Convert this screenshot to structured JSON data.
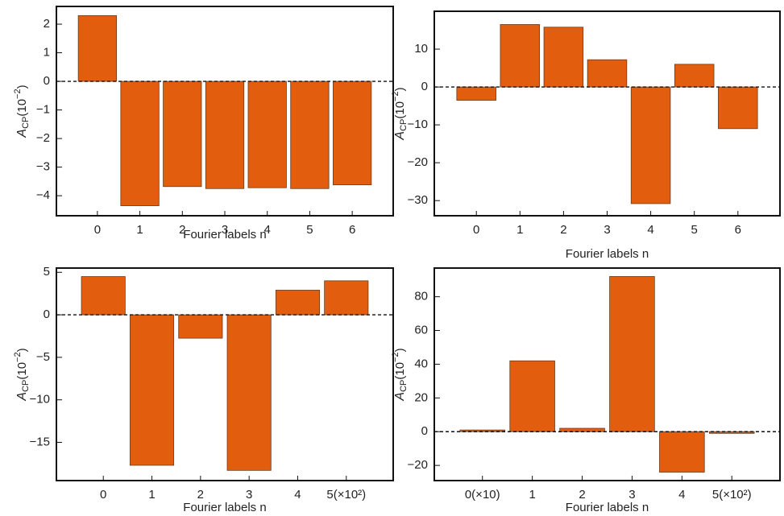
{
  "chart_data": [
    {
      "type": "bar",
      "xlabel": "Fourier labels n",
      "ylabel": {
        "base": "A",
        "sub": "CP",
        "open": "(10",
        "sup": "−2",
        "close": ")"
      },
      "categories": [
        "0",
        "1",
        "2",
        "3",
        "4",
        "5",
        "6"
      ],
      "values": [
        2.3,
        -4.35,
        -3.68,
        -3.75,
        -3.72,
        -3.75,
        -3.62
      ],
      "color": "#e35d0f",
      "ylim": [
        -4.7,
        2.62
      ],
      "yticks": [
        -4,
        -3,
        -2,
        -1,
        0,
        1,
        2
      ]
    },
    {
      "type": "bar",
      "xlabel": "Fourier labels n",
      "ylabel": {
        "base": "A",
        "sub": "CP",
        "open": "(10",
        "sup": "−2",
        "close": ")"
      },
      "categories": [
        "0",
        "1",
        "2",
        "3",
        "4",
        "5",
        "6"
      ],
      "values": [
        -3.5,
        16.5,
        15.8,
        7.2,
        -30.8,
        6.0,
        -11.0
      ],
      "color": "#e35d0f",
      "ylim": [
        -34,
        20
      ],
      "yticks": [
        -30,
        -20,
        -10,
        0,
        10
      ]
    },
    {
      "type": "bar",
      "xlabel": "Fourier labels n",
      "ylabel": {
        "base": "A",
        "sub": "CP",
        "open": "(10",
        "sup": "−2",
        "close": ")"
      },
      "categories": [
        "0",
        "1",
        "2",
        "3",
        "4",
        "5(×10²)"
      ],
      "values": [
        4.5,
        -17.7,
        -2.75,
        -18.3,
        2.9,
        4.0
      ],
      "color": "#e35d0f",
      "ylim": [
        -19.5,
        5.5
      ],
      "yticks": [
        -15,
        -10,
        -5,
        0,
        5
      ]
    },
    {
      "type": "bar",
      "xlabel": "Fourier labels n",
      "ylabel": {
        "base": "A",
        "sub": "CP",
        "open": "(10",
        "sup": "−2",
        "close": ")"
      },
      "categories": [
        "0(×10)",
        "1",
        "2",
        "3",
        "4",
        "5(×10²)"
      ],
      "values": [
        1,
        42,
        2,
        92,
        -24,
        -1
      ],
      "color": "#e35d0f",
      "ylim": [
        -29,
        97
      ],
      "yticks": [
        -20,
        0,
        20,
        40,
        60,
        80
      ]
    }
  ]
}
